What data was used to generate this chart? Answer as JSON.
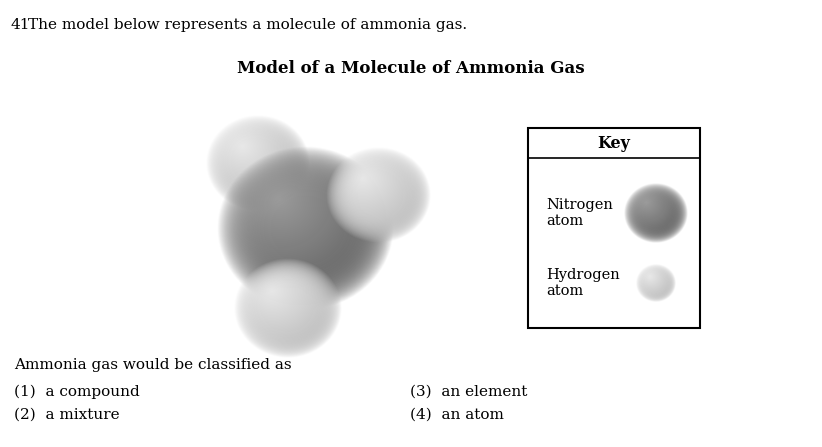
{
  "question_number": "41",
  "question_text": "The model below represents a molecule of ammonia gas.",
  "title": "Model of a Molecule of Ammonia Gas",
  "nitrogen_dark": "#4a4a4a",
  "nitrogen_mid": "#707070",
  "nitrogen_light": "#9a9a9a",
  "hydrogen_dark": "#a0a0a0",
  "hydrogen_mid": "#c8c8c8",
  "hydrogen_light": "#e8e8e8",
  "key_title": "Key",
  "key_label1": "Nitrogen\natom",
  "key_label2": "Hydrogen\natom",
  "question_text2": "Ammonia gas would be classified as",
  "choice1": "(1)  a compound",
  "choice2": "(2)  a mixture",
  "choice3": "(3)  an element",
  "choice4": "(4)  an atom",
  "background_color": "#ffffff",
  "fig_width": 8.22,
  "fig_height": 4.47,
  "dpi": 100
}
